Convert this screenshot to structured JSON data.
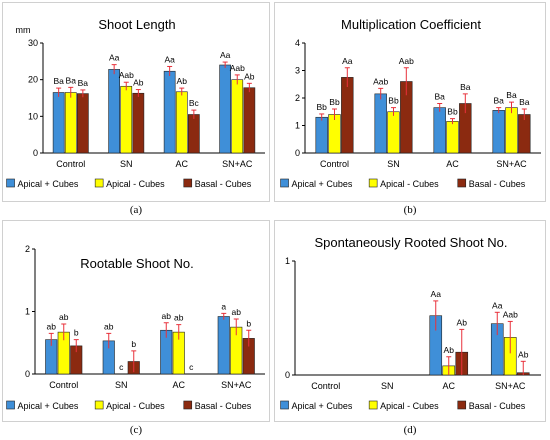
{
  "colors": {
    "apical_plus": "#3F8FD8",
    "apical_minus": "#FFFF00",
    "basal_minus": "#8B2A10",
    "error_bar": "#E8303A",
    "axis": "#000000",
    "bar_outline": "#222222"
  },
  "chart_data": [
    {
      "id": "a",
      "caption": "(a)",
      "type": "bar",
      "title": "Shoot Length",
      "ylabel": "mm",
      "ylim": [
        0,
        30
      ],
      "ytick_labels": [
        "0",
        "10",
        "20",
        "30"
      ],
      "categories": [
        "Control",
        "SN",
        "AC",
        "SN+AC"
      ],
      "series": [
        {
          "name": "Apical + Cubes",
          "values": [
            16.5,
            22.8,
            22.3,
            24.0
          ],
          "errors": [
            1.2,
            1.3,
            1.3,
            0.8
          ],
          "letters": [
            "Ba",
            "Aa",
            "Aa",
            "Aa"
          ]
        },
        {
          "name": "Apical - Cubes",
          "values": [
            16.5,
            18.2,
            16.7,
            20.0
          ],
          "errors": [
            1.4,
            1.1,
            1.0,
            1.3
          ],
          "letters": [
            "Ba",
            "Aab",
            "Ab",
            "Aab"
          ]
        },
        {
          "name": "Basal - Cubes",
          "values": [
            16.2,
            16.3,
            10.5,
            17.8
          ],
          "errors": [
            1.0,
            1.0,
            1.2,
            1.2
          ],
          "letters": [
            "Ba",
            "Ab",
            "Bc",
            "Ab"
          ]
        }
      ]
    },
    {
      "id": "b",
      "caption": "(b)",
      "type": "bar",
      "title": "Multiplication Coefficient",
      "ylabel": "",
      "ylim": [
        0,
        4
      ],
      "ytick_labels": [
        "0",
        "1",
        "2",
        "3",
        "4"
      ],
      "categories": [
        "Control",
        "SN",
        "AC",
        "SN+AC"
      ],
      "series": [
        {
          "name": "Apical + Cubes",
          "values": [
            1.3,
            2.15,
            1.65,
            1.55
          ],
          "errors": [
            0.12,
            0.2,
            0.15,
            0.1
          ],
          "letters": [
            "Bb",
            "Aab",
            "Ba",
            "Ba"
          ]
        },
        {
          "name": "Apical - Cubes",
          "values": [
            1.4,
            1.5,
            1.15,
            1.65
          ],
          "errors": [
            0.2,
            0.15,
            0.1,
            0.2
          ],
          "letters": [
            "Bb",
            "Bb",
            "Bb",
            "Ba"
          ]
        },
        {
          "name": "Basal - Cubes",
          "values": [
            2.75,
            2.6,
            1.8,
            1.4
          ],
          "errors": [
            0.35,
            0.5,
            0.35,
            0.2
          ],
          "letters": [
            "Aa",
            "Aab",
            "Ba",
            "Ba"
          ]
        }
      ]
    },
    {
      "id": "c",
      "caption": "(c)",
      "type": "bar",
      "title": "Rootable Shoot No.",
      "ylabel": "",
      "ylim": [
        0,
        2
      ],
      "ytick_labels": [
        "0",
        "1",
        "2"
      ],
      "categories": [
        "Control",
        "SN",
        "AC",
        "SN+AC"
      ],
      "series": [
        {
          "name": "Apical + Cubes",
          "values": [
            0.55,
            0.53,
            0.7,
            0.92
          ],
          "errors": [
            0.1,
            0.12,
            0.12,
            0.05
          ],
          "letters": [
            "ab",
            "ab",
            "ab",
            "a"
          ]
        },
        {
          "name": "Apical - Cubes",
          "values": [
            0.67,
            0.0,
            0.67,
            0.75
          ],
          "errors": [
            0.13,
            0.0,
            0.12,
            0.13
          ],
          "letters": [
            "ab",
            "c",
            "ab",
            "ab"
          ]
        },
        {
          "name": "Basal - Cubes",
          "values": [
            0.45,
            0.2,
            0.0,
            0.57
          ],
          "errors": [
            0.1,
            0.17,
            0.0,
            0.13
          ],
          "letters": [
            "b",
            "b",
            "c",
            "b"
          ]
        }
      ]
    },
    {
      "id": "d",
      "caption": "(d)",
      "type": "bar",
      "title": "Spontaneously Rooted Shoot No.",
      "ylabel": "",
      "ylim": [
        0,
        1
      ],
      "ytick_labels": [
        "0",
        "1"
      ],
      "categories": [
        "Control",
        "SN",
        "AC",
        "SN+AC"
      ],
      "series": [
        {
          "name": "Apical + Cubes",
          "values": [
            0,
            0,
            0.52,
            0.45
          ],
          "errors": [
            0,
            0,
            0.13,
            0.1
          ],
          "letters": [
            "",
            "",
            "Aa",
            "Aa"
          ]
        },
        {
          "name": "Apical - Cubes",
          "values": [
            0,
            0,
            0.08,
            0.33
          ],
          "errors": [
            0,
            0,
            0.08,
            0.14
          ],
          "letters": [
            "",
            "",
            "Ab",
            "Aab"
          ]
        },
        {
          "name": "Basal - Cubes",
          "values": [
            0,
            0,
            0.2,
            0.02
          ],
          "errors": [
            0,
            0,
            0.2,
            0.1
          ],
          "letters": [
            "",
            "",
            "Ab",
            "Ab"
          ]
        }
      ]
    }
  ]
}
